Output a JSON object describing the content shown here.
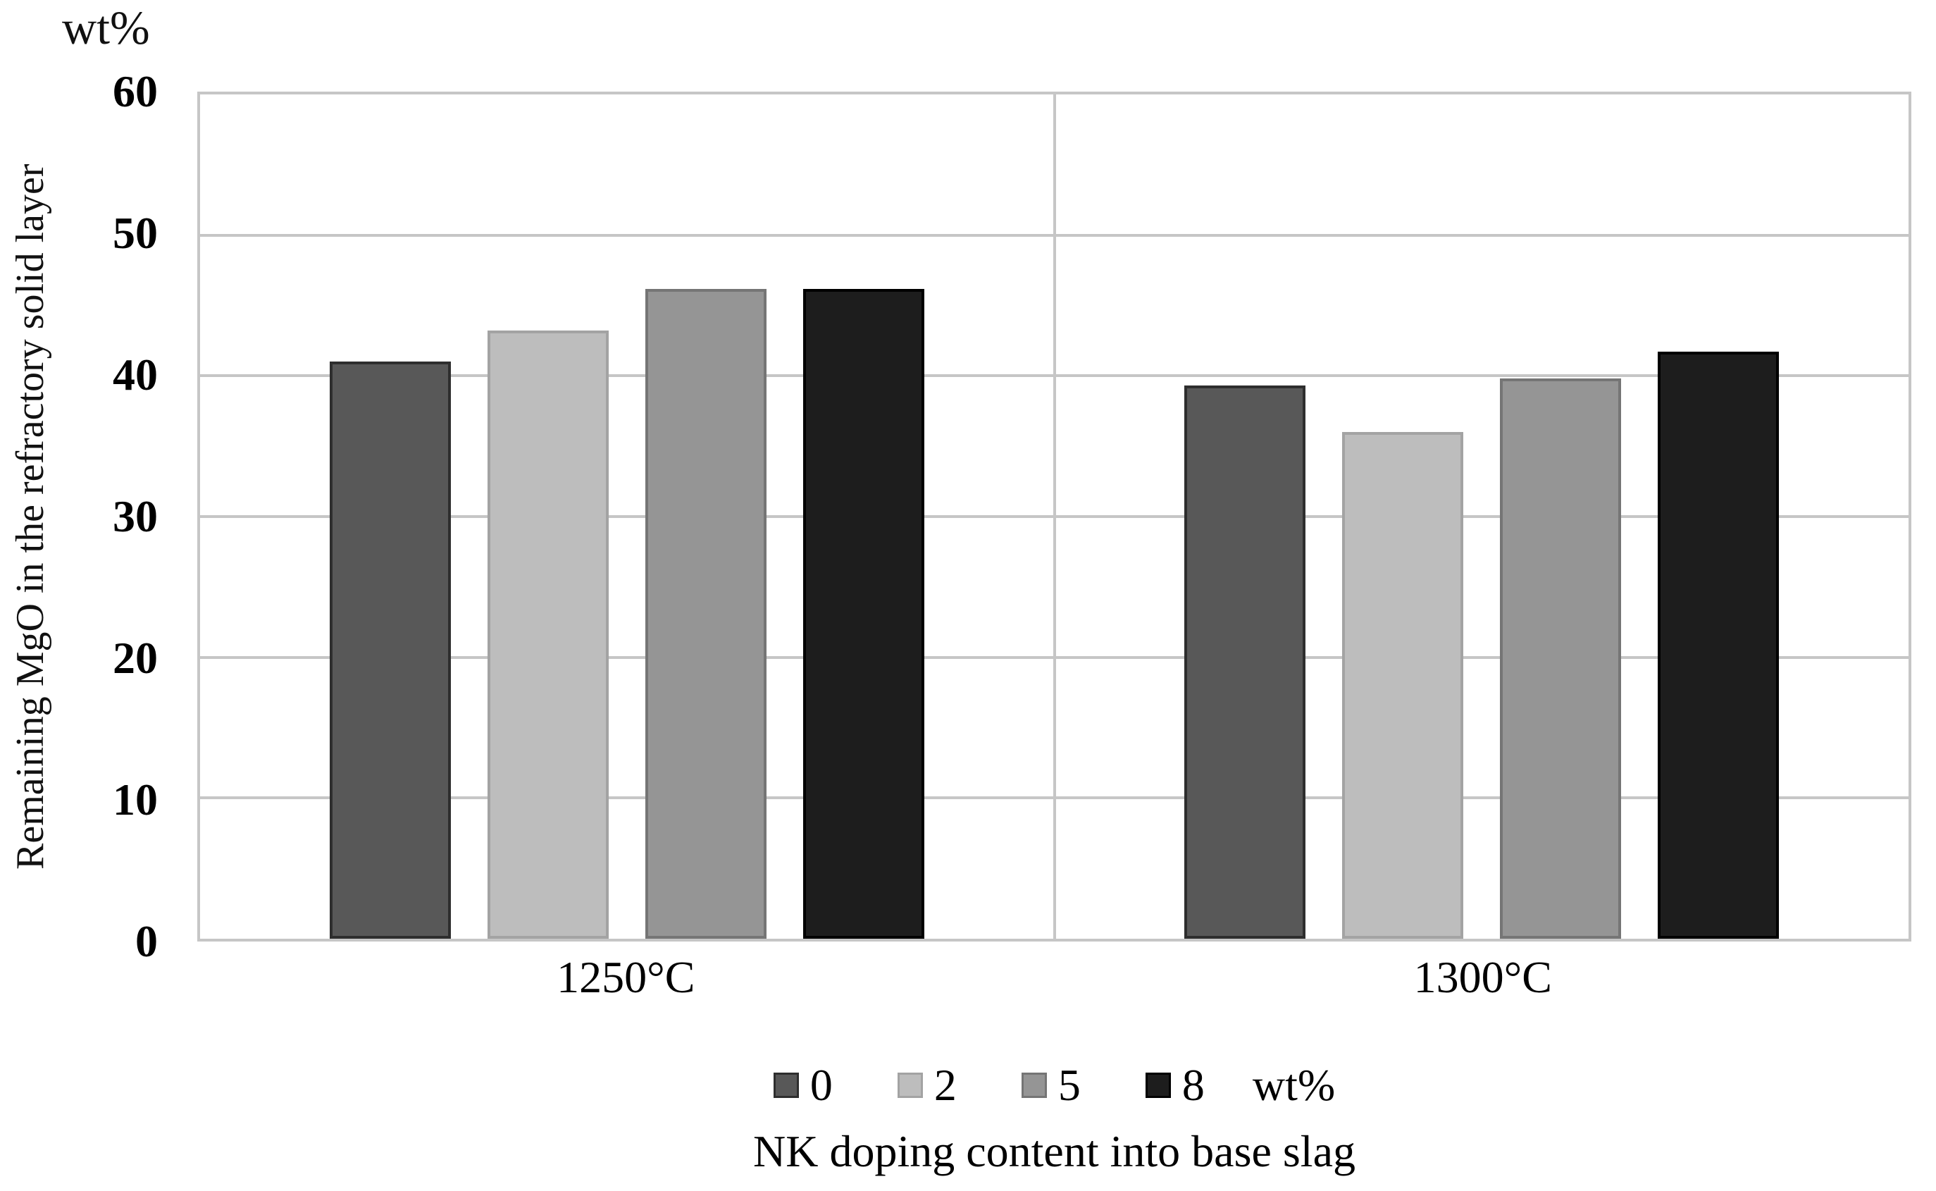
{
  "chart_data": {
    "type": "bar",
    "title": "",
    "categories": [
      "1250°C",
      "1300°C"
    ],
    "series": [
      {
        "name": "0",
        "color": "#585858",
        "border_color": "#2e2e2e",
        "values": [
          41.0,
          39.3
        ]
      },
      {
        "name": "2",
        "color": "#bdbdbd",
        "border_color": "#a3a3a3",
        "values": [
          43.2,
          36.0
        ]
      },
      {
        "name": "5",
        "color": "#959595",
        "border_color": "#757575",
        "values": [
          46.2,
          39.8
        ]
      },
      {
        "name": "8",
        "color": "#1d1d1d",
        "border_color": "#000000",
        "values": [
          46.2,
          41.7
        ]
      }
    ],
    "xlabel": "NK doping content into base slag",
    "ylabel": "Remaining MgO in the refractory solid layer",
    "y_unit": "wt%",
    "ylim": [
      0,
      60
    ],
    "y_ticks": [
      0,
      10,
      20,
      30,
      40,
      50,
      60
    ],
    "grid": true,
    "legend_position": "bottom",
    "legend_labels": [
      "0",
      "2",
      "5",
      "8"
    ],
    "legend_suffix": "wt%"
  },
  "colors": {
    "background": "#ffffff",
    "gridline": "#c6c6c6",
    "plot_border": "#c6c6c6",
    "text": "#000000"
  }
}
